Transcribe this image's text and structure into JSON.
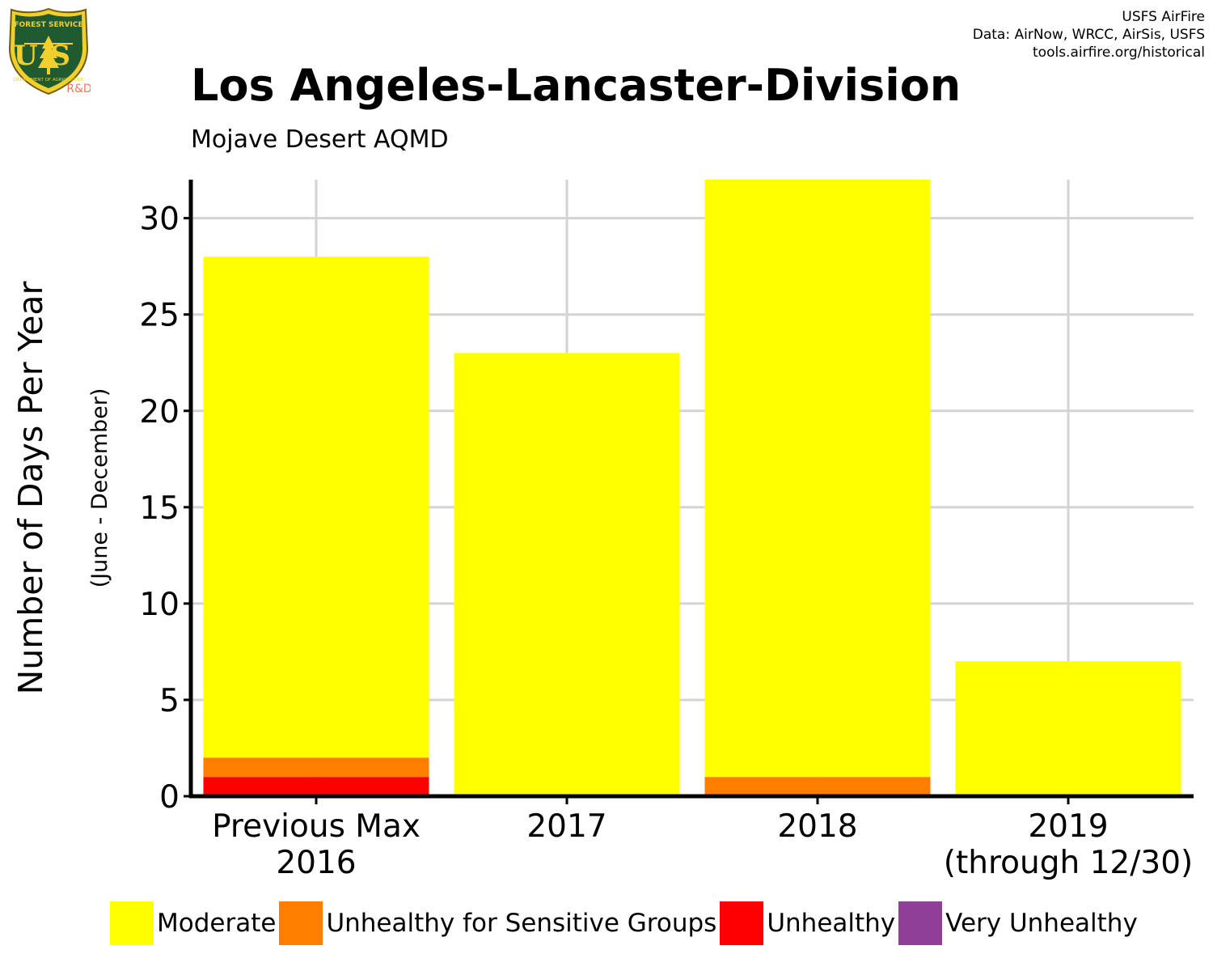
{
  "header": {
    "title": "Los Angeles-Lancaster-Division",
    "subtitle": "Mojave Desert AQMD",
    "credits": [
      "USFS AirFire",
      "Data: AirNow, WRCC, AirSis, USFS",
      "tools.airfire.org/historical"
    ]
  },
  "logo": {
    "top_text": "FOREST SERVICE",
    "letters": "US",
    "bottom_text": "DEPARTMENT OF AGRICULTURE",
    "rd_label": "R&D"
  },
  "chart_data": {
    "type": "bar",
    "stacked": true,
    "ylabel": "Number of Days Per Year",
    "ylabel_sub": "(June - December)",
    "ylim": [
      0,
      32
    ],
    "yticks": [
      0,
      5,
      10,
      15,
      20,
      25,
      30
    ],
    "grid": true,
    "legend_position": "bottom",
    "categories": [
      [
        "Previous Max",
        "2016"
      ],
      [
        "2017"
      ],
      [
        "2018"
      ],
      [
        "2019",
        "(through 12/30)"
      ]
    ],
    "series": [
      {
        "name": "Unhealthy",
        "color": "#ff0000",
        "values": [
          1,
          0,
          0,
          0
        ]
      },
      {
        "name": "Unhealthy for Sensitive Groups",
        "color": "#ff7e00",
        "values": [
          1,
          0,
          1,
          0
        ]
      },
      {
        "name": "Moderate",
        "color": "#ffff00",
        "values": [
          26,
          23,
          31,
          7
        ]
      }
    ],
    "legend": [
      {
        "name": "Moderate",
        "color": "#ffff00"
      },
      {
        "name": "Unhealthy for Sensitive Groups",
        "color": "#ff7e00"
      },
      {
        "name": "Unhealthy",
        "color": "#ff0000"
      },
      {
        "name": "Very Unhealthy",
        "color": "#8f3f97"
      }
    ]
  }
}
